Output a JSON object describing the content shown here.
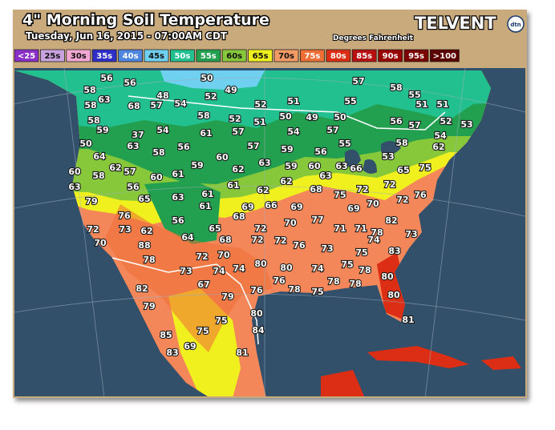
{
  "header": {
    "title": "4\" Morning Soil Temperature",
    "subtitle": "Tuesday, Jun 16, 2015 - 07:00AM CDT",
    "units": "Degrees Fahrenheit",
    "brand": "TELVENT",
    "brand_badge": "dtn"
  },
  "legend": [
    {
      "label": "<25",
      "color": "#8a2fc8"
    },
    {
      "label": "25s",
      "color": "#c7a2de"
    },
    {
      "label": "30s",
      "color": "#f2a8d2"
    },
    {
      "label": "35s",
      "color": "#2f2fc8"
    },
    {
      "label": "40s",
      "color": "#4f86e0"
    },
    {
      "label": "45s",
      "color": "#6fd0f0"
    },
    {
      "label": "50s",
      "color": "#22c08f"
    },
    {
      "label": "55s",
      "color": "#22a050"
    },
    {
      "label": "60s",
      "color": "#86c83a"
    },
    {
      "label": "65s",
      "color": "#f0f01e"
    },
    {
      "label": "70s",
      "color": "#f49a64"
    },
    {
      "label": "75s",
      "color": "#ee6e36"
    },
    {
      "label": "80s",
      "color": "#dc2e14"
    },
    {
      "label": "85s",
      "color": "#b81010"
    },
    {
      "label": "90s",
      "color": "#980404"
    },
    {
      "label": "95s",
      "color": "#7a0000"
    },
    {
      "label": ">100",
      "color": "#5a0000"
    }
  ],
  "readings": [
    56,
    56,
    50,
    57,
    58,
    49,
    58,
    55,
    58,
    63,
    68,
    57,
    48,
    54,
    52,
    52,
    51,
    55,
    51,
    51,
    58,
    58,
    52,
    51,
    50,
    49,
    50,
    56,
    57,
    52,
    53,
    59,
    54,
    61,
    57,
    54,
    57,
    54,
    37,
    63,
    58,
    56,
    57,
    59,
    56,
    55,
    53,
    58,
    62,
    50,
    64,
    62,
    57,
    58,
    60,
    61,
    59,
    60,
    62,
    63,
    59,
    60,
    63,
    63,
    66,
    65,
    75,
    60,
    63,
    56,
    65,
    63,
    61,
    61,
    62,
    62,
    68,
    75,
    72,
    72,
    72,
    76,
    79,
    61,
    69,
    66,
    69,
    68,
    69,
    70,
    82,
    76,
    56,
    72,
    70,
    77,
    71,
    71,
    78,
    72,
    73,
    62,
    65,
    73,
    70,
    88,
    64,
    68,
    72,
    72,
    76,
    74,
    78,
    72,
    70,
    73,
    75,
    83,
    73,
    74,
    74,
    80,
    80,
    74,
    75,
    78,
    80,
    82,
    67,
    76,
    76,
    78,
    75,
    78,
    78,
    79,
    80,
    79,
    80,
    75,
    84,
    81,
    75,
    85,
    69,
    81,
    83
  ]
}
